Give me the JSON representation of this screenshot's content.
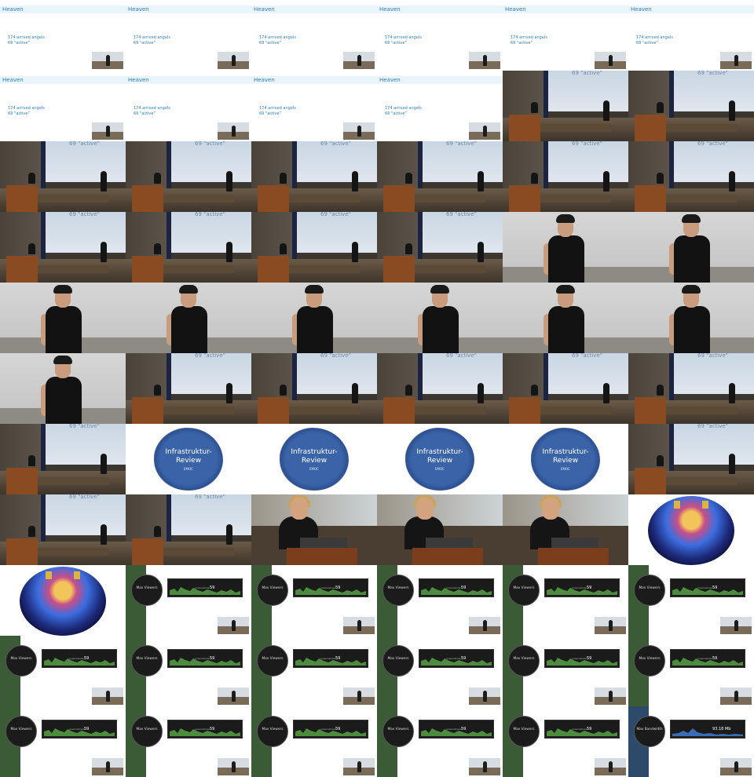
{
  "sheet": {
    "columns": 6,
    "rows": 11
  },
  "heaven": {
    "title": "Heaven",
    "arrived": "174 arrived angels",
    "active": "69 \"active\""
  },
  "hall": {
    "caption": "69 \"active\""
  },
  "slide": {
    "title_line1": "Infrastruktur-",
    "title_line2": "Review",
    "subtitle": "EMOC"
  },
  "stats": {
    "viewers_label": "Max Viewers",
    "viewers_value": "59",
    "viewers_sub": "viewers/stream",
    "bandwidth_label": "Max Bandwidth",
    "bandwidth_value": "93.18 Mb"
  },
  "frames": [
    "heaven",
    "heaven",
    "heaven",
    "heaven",
    "heaven",
    "heaven",
    "heaven",
    "heaven",
    "heaven",
    "heaven",
    "hall",
    "hall",
    "hall",
    "hall",
    "hall",
    "hall",
    "hall",
    "hall",
    "hall",
    "hall",
    "hall",
    "hall",
    "close",
    "close",
    "close",
    "close",
    "close",
    "close",
    "close",
    "close",
    "close",
    "hall",
    "hall",
    "hall",
    "hall",
    "hall",
    "hall",
    "slide",
    "slide",
    "slide",
    "slide",
    "hall",
    "hall",
    "hall",
    "spk2",
    "spk2",
    "spk2",
    "cat",
    "cat",
    "stats",
    "stats",
    "stats",
    "stats",
    "stats",
    "stats",
    "stats",
    "stats",
    "stats",
    "stats",
    "stats",
    "stats",
    "stats",
    "stats",
    "stats",
    "stats",
    "stats-bw"
  ]
}
